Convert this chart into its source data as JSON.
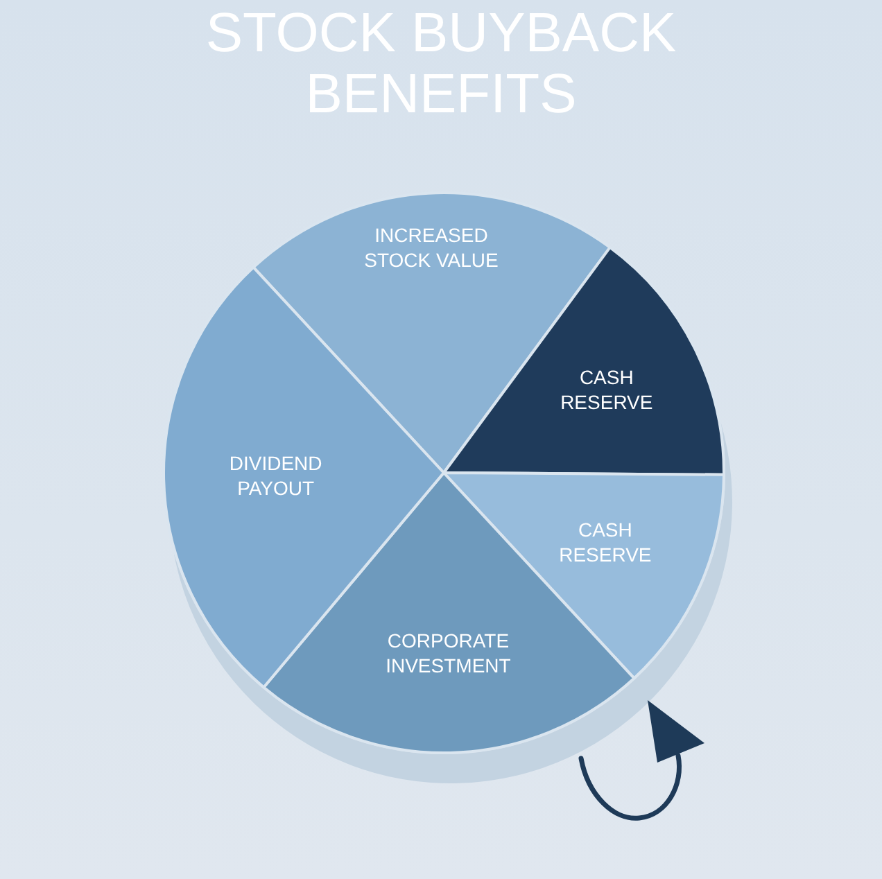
{
  "chart_data": {
    "type": "pie",
    "title": "STOCK BUYBACK BENEFITS",
    "categories": [
      "INCREASED STOCK VALUE",
      "CASH RESERVE",
      "CASH RESERVE",
      "CORPORATE INVESTMENT",
      "DIVIDEND PAYOUT"
    ],
    "values": [
      22,
      15,
      13,
      23,
      27
    ],
    "colors": [
      "#8cb3d4",
      "#1f3b5b",
      "#97bcdc",
      "#6e9abd",
      "#80abd0"
    ]
  }
}
